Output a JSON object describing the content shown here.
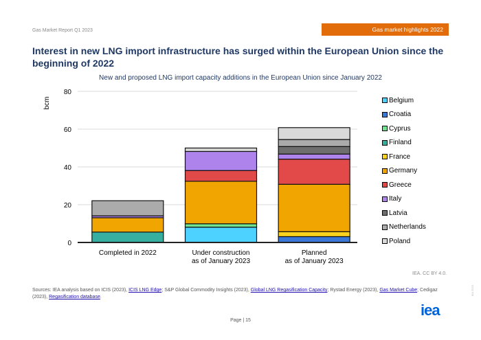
{
  "header": {
    "report_name": "Gas Market Report Q1 2023",
    "section_banner": "Gas market highlights 2022",
    "page_title": "Interest in new LNG import infrastructure has surged within the European Union since the beginning of 2022",
    "banner_color": "#E36C0A"
  },
  "chart_data": {
    "type": "bar",
    "stacked": true,
    "title": "New and proposed LNG import capacity additions in the European Union since January 2022",
    "xlabel": "",
    "ylabel": "bcm",
    "ylim": [
      0,
      80
    ],
    "yticks": [
      0,
      20,
      40,
      60,
      80
    ],
    "grid": true,
    "legend_position": "right",
    "categories": [
      "Completed in 2022",
      "Under construction as of January 2023",
      "Planned as of January 2023"
    ],
    "category_lines": [
      [
        "Completed in 2022"
      ],
      [
        "Under construction",
        "as of January 2023"
      ],
      [
        "Planned",
        "as of January 2023"
      ]
    ],
    "series": [
      {
        "name": "Belgium",
        "color": "#4DD2FF",
        "values": [
          0,
          8.1,
          0
        ]
      },
      {
        "name": "Croatia",
        "color": "#3A78D8",
        "values": [
          0,
          0,
          3.1
        ]
      },
      {
        "name": "Cyprus",
        "color": "#6FE38F",
        "values": [
          0,
          1.8,
          0
        ]
      },
      {
        "name": "Finland",
        "color": "#36AFA0",
        "values": [
          5.5,
          0,
          0
        ]
      },
      {
        "name": "France",
        "color": "#F9D21E",
        "values": [
          0,
          0,
          2.6
        ]
      },
      {
        "name": "Germany",
        "color": "#F0A500",
        "values": [
          7.6,
          22.5,
          25.1
        ]
      },
      {
        "name": "Greece",
        "color": "#E24A4A",
        "values": [
          0,
          5.7,
          13.3
        ]
      },
      {
        "name": "Italy",
        "color": "#AE84EC",
        "values": [
          1.0,
          10.1,
          2.7
        ]
      },
      {
        "name": "Latvia",
        "color": "#6E6E6E",
        "values": [
          0,
          0,
          4.0
        ]
      },
      {
        "name": "Netherlands",
        "color": "#ABABAB",
        "values": [
          8.0,
          0,
          3.7
        ]
      },
      {
        "name": "Poland",
        "color": "#D9D9D9",
        "values": [
          0,
          1.8,
          6.3
        ]
      }
    ]
  },
  "credit": "IEA. CC BY 4.0.",
  "sources": {
    "prefix": "Sources: IEA analysis based on ICIS (2023), ",
    "link1": "ICIS LNG Edge",
    "mid1": "; S&P Global Commodity Insights (2023), ",
    "link2": "Global LNG Regasification Capacity",
    "mid2": "; Rystad Energy (2023), ",
    "link3": "Gas Market Cube",
    "mid3": "; Cedigaz (2023), ",
    "link4": "Regasification database",
    "suffix": "."
  },
  "logo": "iea",
  "page_number": "Page | 15",
  "vertical_mark": "IEA 2023"
}
